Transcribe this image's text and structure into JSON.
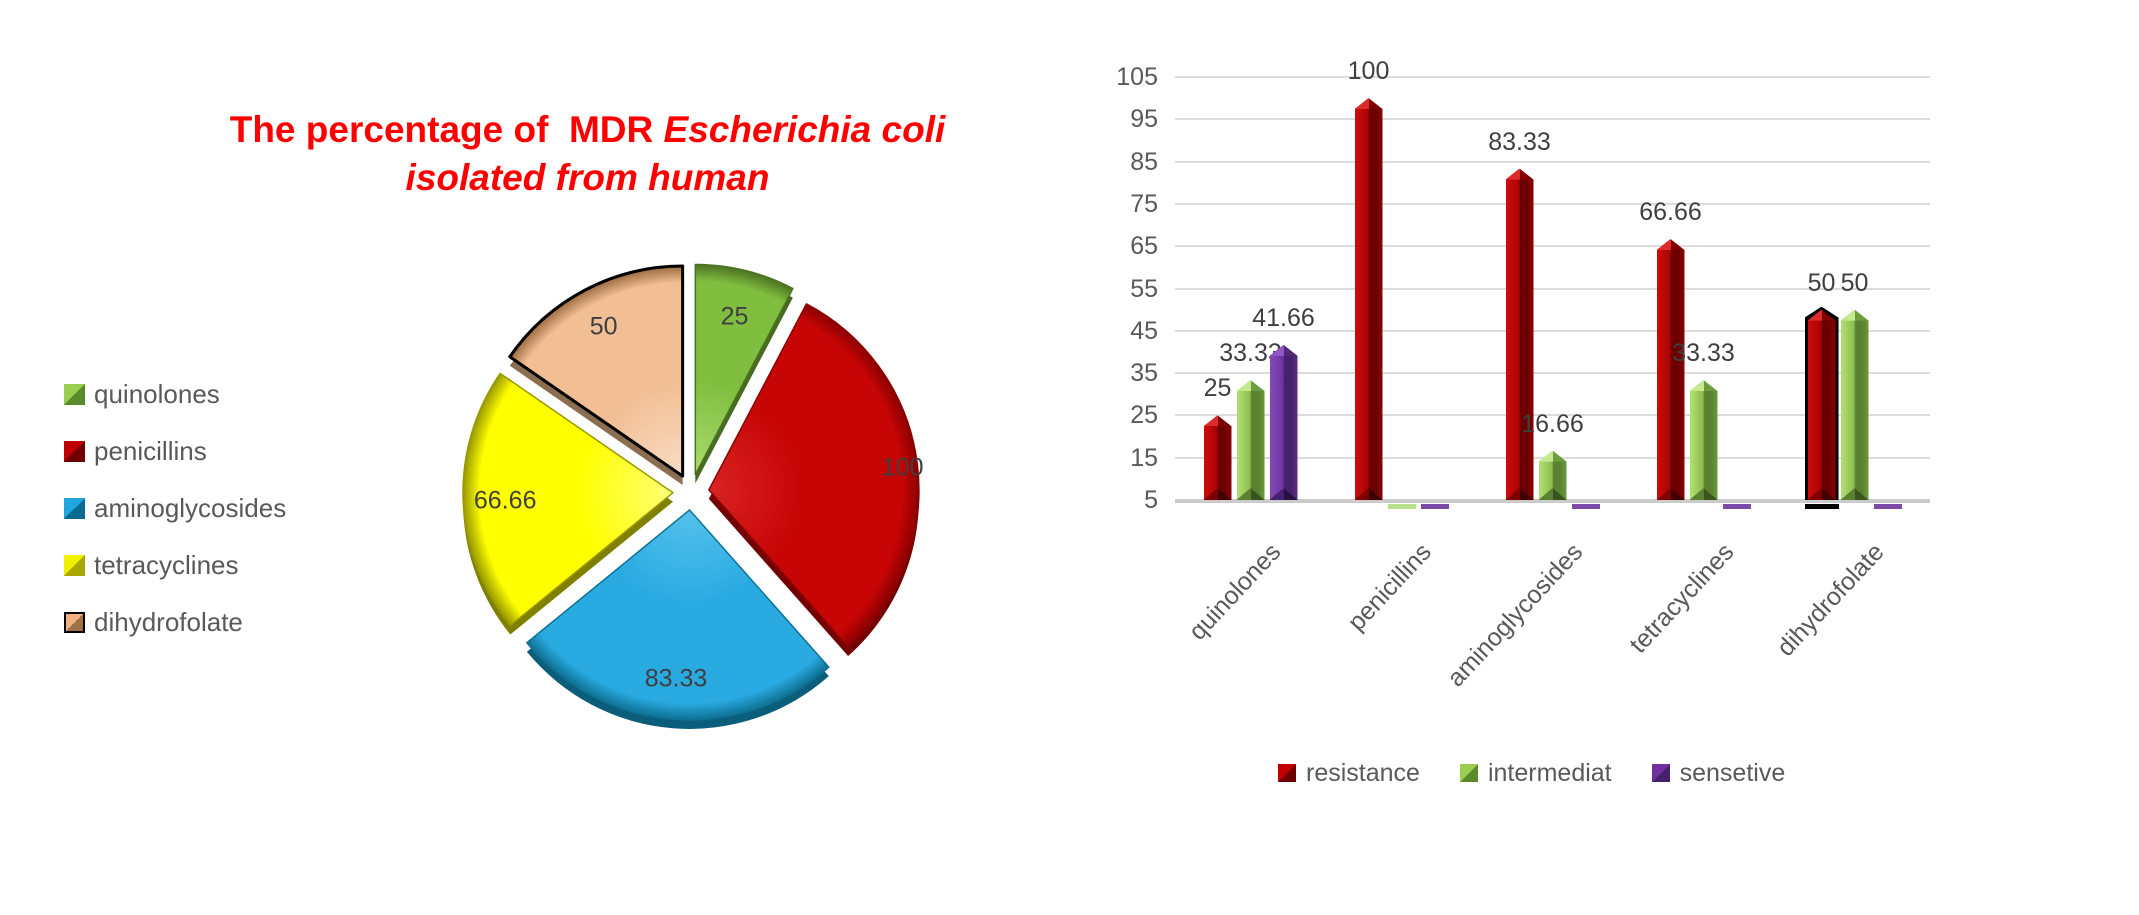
{
  "title": {
    "line1_prefix": "The percentage of  MDR ",
    "line1_italic": "Escherichia coli",
    "line2": "isolated from human",
    "color": "#ff0000"
  },
  "pie_legend": [
    {
      "label": "quinolones",
      "swatch_light": "#9ACD50",
      "swatch_dark": "#5A8A2A",
      "border": "none"
    },
    {
      "label": "penicillins",
      "swatch_light": "#C00000",
      "swatch_dark": "#700000",
      "border": "none"
    },
    {
      "label": "aminoglycosides",
      "swatch_light": "#1FA6DE",
      "swatch_dark": "#0A6A92",
      "border": "none"
    },
    {
      "label": "tetracyclines",
      "swatch_light": "#F0F000",
      "swatch_dark": "#A8A800",
      "border": "none"
    },
    {
      "label": "dihydrofolate",
      "swatch_light": "#F0B080",
      "swatch_dark": "#A07048",
      "border": "#000000"
    }
  ],
  "chart_data": [
    {
      "type": "pie",
      "title": "The percentage of MDR Escherichia coli isolated from human",
      "labels": [
        "quinolones",
        "penicillins",
        "aminoglycosides",
        "tetracyclines",
        "dihydrofolate"
      ],
      "values": [
        25,
        100,
        83.33,
        66.66,
        50
      ],
      "value_labels": [
        "25",
        "100",
        "83.33",
        "66.66",
        "50"
      ],
      "label_color": "#3f3f3f",
      "legend_position": "left",
      "slice_styles": [
        {
          "base": "#7FBE3F",
          "light": "#A9DC6E",
          "edge": "#4E7323",
          "under": "#486A21",
          "outlined": false
        },
        {
          "base": "#C70505",
          "light": "#D92323",
          "edge": "#8B0000",
          "under": "#740000",
          "outlined": false
        },
        {
          "base": "#29ABE2",
          "light": "#55C1EC",
          "edge": "#0E7193",
          "under": "#0A5E7C",
          "outlined": false
        },
        {
          "base": "#FFFF00",
          "light": "#FFFF7A",
          "edge": "#999900",
          "under": "#808000",
          "outlined": false
        },
        {
          "base": "#F2BE94",
          "light": "#F9DCC3",
          "edge": "#9C6B3F",
          "under": "#8B6D4F",
          "outlined": true
        }
      ]
    },
    {
      "type": "bar",
      "categories": [
        "quinolones",
        "penicillins",
        "aminoglycosides",
        "tetracyclines",
        "dihydrofolate"
      ],
      "series": [
        {
          "name": "resistance",
          "values": [
            25,
            100,
            83.33,
            66.66,
            50
          ],
          "value_labels": [
            "25",
            "100",
            "83.33",
            "66.66",
            "50"
          ],
          "outlined": [
            false,
            false,
            false,
            false,
            true
          ],
          "facets": [
            "#CB0A0A",
            "#A80404",
            "#6B0000",
            "#8B0303"
          ],
          "cap": [
            "#DD2B2B",
            "#7E0000"
          ],
          "foot": [
            "#7E0000",
            "#3F0000"
          ],
          "sliver": "#C00000",
          "legend_light": "#C00000",
          "legend_dark": "#700000"
        },
        {
          "name": "intermediat",
          "values": [
            33.33,
            0,
            16.66,
            33.33,
            50
          ],
          "value_labels": [
            "33.33",
            "",
            "16.66",
            "33.33",
            "50"
          ],
          "outlined": [
            false,
            false,
            false,
            false,
            false
          ],
          "facets": [
            "#AEDC6E",
            "#8CBE4E",
            "#5A8130",
            "#6C9C3C"
          ],
          "cap": [
            "#C4E98F",
            "#6C9C3C"
          ],
          "foot": [
            "#5A8130",
            "#39541E"
          ],
          "sliver": "#B9E08A",
          "legend_light": "#9ACD50",
          "legend_dark": "#5A8A2A"
        },
        {
          "name": "sensetive",
          "values": [
            41.66,
            0,
            0,
            0,
            0
          ],
          "value_labels": [
            "41.66",
            "",
            "",
            "",
            ""
          ],
          "outlined": [
            false,
            false,
            false,
            false,
            false
          ],
          "facets": [
            "#8148B5",
            "#6C34A0",
            "#46216D",
            "#58327F"
          ],
          "cap": [
            "#9256C6",
            "#502A74"
          ],
          "foot": [
            "#46216D",
            "#27123F"
          ],
          "sliver": "#7C4BA8",
          "legend_light": "#7030A0",
          "legend_dark": "#45206B"
        }
      ],
      "ylim": [
        5,
        105
      ],
      "ytick_step": 10,
      "ytick_labels": [
        "5",
        "15",
        "25",
        "35",
        "45",
        "55",
        "65",
        "75",
        "85",
        "95",
        "105"
      ],
      "grid": true,
      "data_labels": true,
      "label_color": "#3f3f3f",
      "axis_color": "#595959",
      "legend_position": "bottom"
    }
  ]
}
